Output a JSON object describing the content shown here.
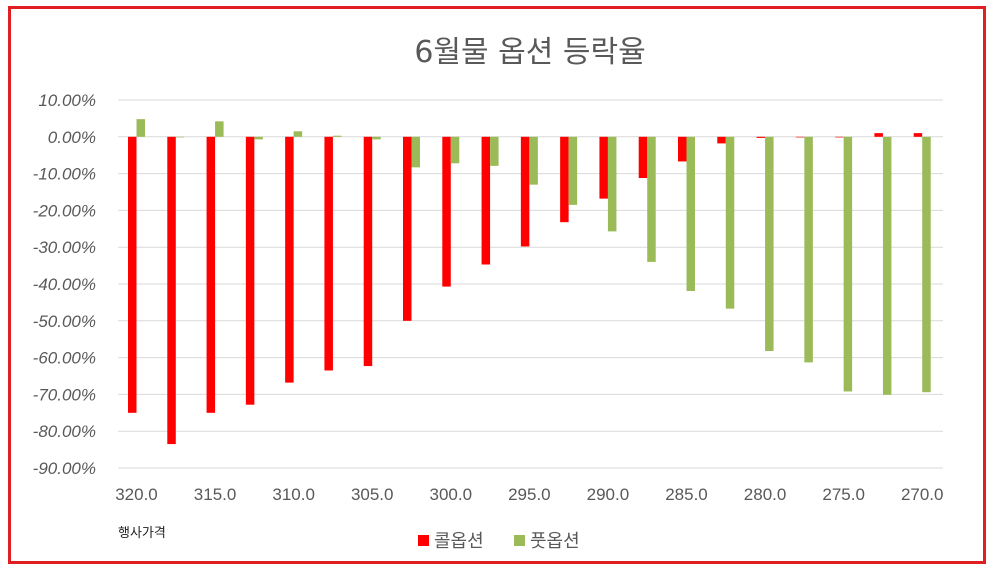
{
  "chart_data": {
    "type": "bar",
    "title": "6월물 옵션 등락율",
    "xlabel": "행사가격",
    "ylabel": "",
    "ylim": [
      -90,
      10
    ],
    "yticks": [
      "10.00%",
      "0.00%",
      "-10.00%",
      "-20.00%",
      "-30.00%",
      "-40.00%",
      "-50.00%",
      "-60.00%",
      "-70.00%",
      "-80.00%",
      "-90.00%"
    ],
    "categories": [
      "320.0",
      "317.5",
      "315.0",
      "312.5",
      "310.0",
      "307.5",
      "305.0",
      "302.5",
      "300.0",
      "297.5",
      "295.0",
      "292.5",
      "290.0",
      "287.5",
      "285.0",
      "282.5",
      "280.0",
      "277.5",
      "275.0",
      "272.5",
      "270.0"
    ],
    "xtick_labels": [
      "320.0",
      "",
      "315.0",
      "",
      "310.0",
      "",
      "305.0",
      "",
      "300.0",
      "",
      "295.0",
      "",
      "290.0",
      "",
      "285.0",
      "",
      "280.0",
      "",
      "275.0",
      "",
      "270.0"
    ],
    "series": [
      {
        "name": "콜옵션",
        "color": "#ff0000",
        "values": [
          -75.0,
          -83.5,
          -75.0,
          -72.8,
          -66.8,
          -63.5,
          -62.3,
          -50.0,
          -40.7,
          -34.7,
          -29.8,
          -23.2,
          -16.8,
          -11.2,
          -6.7,
          -1.8,
          -0.3,
          0.0,
          0.0,
          1.0,
          1.0
        ]
      },
      {
        "name": "풋옵션",
        "color": "#9bbb59",
        "values": [
          4.8,
          0.0,
          4.2,
          -0.7,
          1.5,
          0.3,
          -0.7,
          -8.3,
          -7.2,
          -7.9,
          -13.0,
          -18.5,
          -25.7,
          -34.0,
          -41.9,
          -46.7,
          -58.2,
          -61.3,
          -69.2,
          -70.1,
          -69.4
        ]
      }
    ],
    "legend_position": "bottom",
    "grid": true
  }
}
